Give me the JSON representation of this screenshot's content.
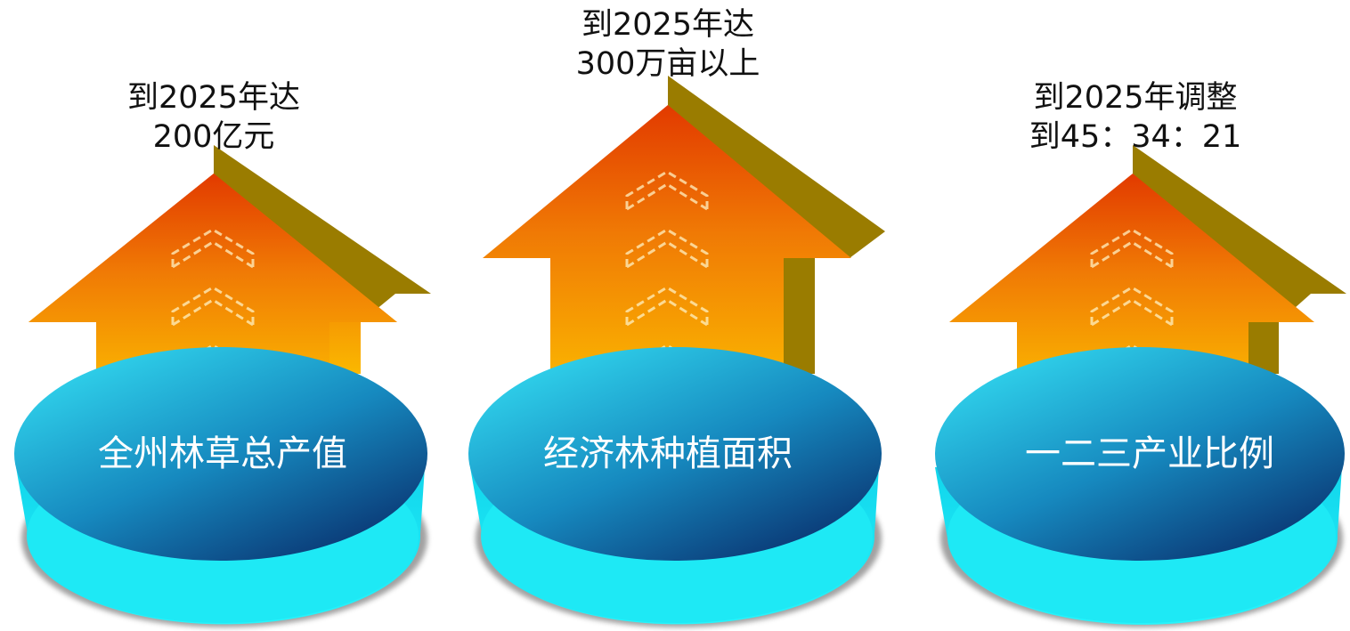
{
  "colors": {
    "arrow_top": "#e23a00",
    "arrow_mid": "#f07a05",
    "arrow_bottom": "#fbb000",
    "arrow_side": "#9a7c00",
    "disc_light": "#29c4e4",
    "disc_dark": "#0a3d7a",
    "disc_rim": "#1ee9f5",
    "chevron_stroke": "#fff2c4"
  },
  "items": [
    {
      "target_line1": "到2025年达",
      "target_line2": "200亿元",
      "label": "全州林草总产值",
      "arrow_icon": "up-arrow-icon"
    },
    {
      "target_line1": "到2025年达",
      "target_line2": "300万亩以上",
      "label": "经济林种植面积",
      "arrow_icon": "up-arrow-icon"
    },
    {
      "target_line1": "到2025年调整",
      "target_line2": "到45：34：21",
      "label": "一二三产业比例",
      "arrow_icon": "up-arrow-icon"
    }
  ]
}
